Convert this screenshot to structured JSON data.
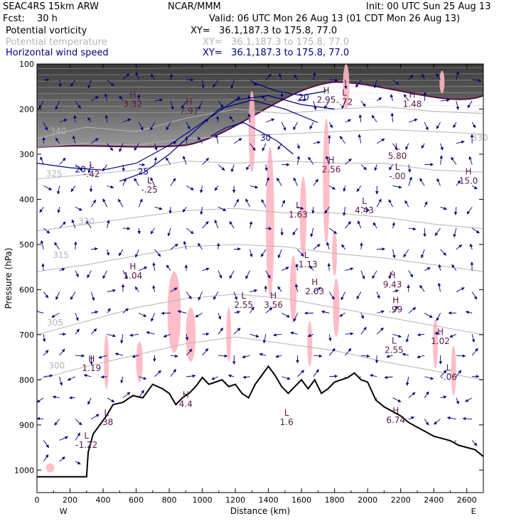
{
  "header": {
    "model": "SEAC4RS 15km ARW",
    "org": "NCAR/MMM",
    "init": "Init: 00 UTC Sun 25 Aug 13",
    "fcst_label": "Fcst:",
    "fcst_value": "30 h",
    "valid": "Valid: 06 UTC Mon 26 Aug 13 (01 CDT Mon 26 Aug 13)",
    "fields": [
      {
        "name": "Potential vorticity",
        "xy": "XY=   36.1,187.3 to 175.8, 77.0",
        "color": "#000000"
      },
      {
        "name": "Potential temperature",
        "xy": "XY=   36.1,187.3 to 175.8, 77.0",
        "color": "#b4b4b4"
      },
      {
        "name": "Horizontal wind speed",
        "xy": "XY=   36.1,187.3 to 175.8, 77.0",
        "color": "#000080"
      }
    ]
  },
  "chart_data": {
    "type": "cross-section",
    "xlabel": "Distance (km)",
    "ylabel": "Pressure (hPa)",
    "xlim": [
      0,
      2700
    ],
    "ylim": [
      1050,
      100
    ],
    "x_ticks": [
      0,
      200,
      400,
      600,
      800,
      1000,
      1200,
      1400,
      1600,
      1800,
      2000,
      2200,
      2400,
      2600
    ],
    "y_ticks": [
      100,
      200,
      300,
      400,
      500,
      600,
      700,
      800,
      900,
      1000
    ],
    "x_end_labels": [
      "W",
      "E"
    ],
    "terrain": [
      [
        0,
        1015
      ],
      [
        100,
        1015
      ],
      [
        200,
        1015
      ],
      [
        300,
        1015
      ],
      [
        310,
        960
      ],
      [
        340,
        920
      ],
      [
        380,
        900
      ],
      [
        420,
        880
      ],
      [
        460,
        855
      ],
      [
        520,
        850
      ],
      [
        580,
        835
      ],
      [
        640,
        840
      ],
      [
        700,
        810
      ],
      [
        760,
        820
      ],
      [
        800,
        830
      ],
      [
        840,
        855
      ],
      [
        880,
        840
      ],
      [
        920,
        830
      ],
      [
        960,
        815
      ],
      [
        1000,
        795
      ],
      [
        1040,
        810
      ],
      [
        1080,
        805
      ],
      [
        1120,
        800
      ],
      [
        1160,
        815
      ],
      [
        1200,
        810
      ],
      [
        1240,
        830
      ],
      [
        1280,
        840
      ],
      [
        1320,
        810
      ],
      [
        1360,
        790
      ],
      [
        1400,
        770
      ],
      [
        1440,
        790
      ],
      [
        1480,
        815
      ],
      [
        1520,
        830
      ],
      [
        1560,
        815
      ],
      [
        1600,
        800
      ],
      [
        1640,
        820
      ],
      [
        1680,
        800
      ],
      [
        1720,
        830
      ],
      [
        1760,
        820
      ],
      [
        1800,
        805
      ],
      [
        1840,
        800
      ],
      [
        1880,
        795
      ],
      [
        1920,
        785
      ],
      [
        1960,
        800
      ],
      [
        2000,
        805
      ],
      [
        2050,
        845
      ],
      [
        2100,
        860
      ],
      [
        2150,
        870
      ],
      [
        2200,
        880
      ],
      [
        2250,
        895
      ],
      [
        2300,
        905
      ],
      [
        2350,
        915
      ],
      [
        2400,
        925
      ],
      [
        2450,
        930
      ],
      [
        2500,
        935
      ],
      [
        2550,
        945
      ],
      [
        2600,
        950
      ],
      [
        2650,
        955
      ],
      [
        2700,
        970
      ]
    ],
    "theta_contours": [
      {
        "label": "340",
        "label_at": [
          80,
          255
        ],
        "points": [
          [
            0,
            265
          ],
          [
            300,
            240
          ],
          [
            600,
            250
          ],
          [
            900,
            220
          ],
          [
            1200,
            200
          ],
          [
            1500,
            210
          ],
          [
            1800,
            200
          ],
          [
            2100,
            195
          ],
          [
            2400,
            205
          ],
          [
            2700,
            210
          ]
        ]
      },
      {
        "label": "330",
        "label_at": [
          2630,
          270
        ],
        "points": [
          [
            0,
            285
          ],
          [
            300,
            275
          ],
          [
            600,
            280
          ],
          [
            900,
            265
          ],
          [
            1200,
            260
          ],
          [
            1500,
            255
          ],
          [
            1800,
            250
          ],
          [
            2100,
            245
          ],
          [
            2400,
            250
          ],
          [
            2700,
            255
          ]
        ]
      },
      {
        "label": "325",
        "label_at": [
          55,
          350
        ],
        "points": [
          [
            0,
            355
          ],
          [
            300,
            345
          ],
          [
            600,
            335
          ],
          [
            900,
            315
          ],
          [
            1200,
            320
          ],
          [
            1500,
            315
          ],
          [
            1800,
            320
          ],
          [
            2100,
            320
          ],
          [
            2400,
            335
          ],
          [
            2700,
            340
          ]
        ]
      },
      {
        "label": "320",
        "label_at": [
          250,
          455
        ],
        "points": [
          [
            0,
            470
          ],
          [
            300,
            455
          ],
          [
            600,
            440
          ],
          [
            900,
            425
          ],
          [
            1200,
            420
          ],
          [
            1500,
            430
          ],
          [
            1800,
            430
          ],
          [
            2100,
            440
          ],
          [
            2400,
            455
          ],
          [
            2700,
            465
          ]
        ]
      },
      {
        "label": "315",
        "label_at": [
          95,
          530
        ],
        "points": [
          [
            0,
            560
          ],
          [
            300,
            545
          ],
          [
            600,
            525
          ],
          [
            900,
            505
          ],
          [
            1200,
            500
          ],
          [
            1500,
            505
          ],
          [
            1800,
            520
          ],
          [
            2100,
            530
          ],
          [
            2400,
            545
          ],
          [
            2700,
            560
          ]
        ]
      },
      {
        "label": "305",
        "label_at": [
          60,
          680
        ],
        "points": [
          [
            0,
            700
          ],
          [
            300,
            670
          ],
          [
            600,
            640
          ],
          [
            900,
            620
          ],
          [
            1200,
            610
          ],
          [
            1500,
            620
          ],
          [
            1800,
            640
          ],
          [
            2100,
            660
          ],
          [
            2400,
            680
          ],
          [
            2700,
            700
          ]
        ]
      },
      {
        "label": "300",
        "label_at": [
          70,
          775
        ],
        "points": [
          [
            0,
            800
          ],
          [
            300,
            770
          ],
          [
            600,
            745
          ],
          [
            900,
            720
          ],
          [
            1200,
            705
          ],
          [
            1500,
            720
          ],
          [
            1800,
            735
          ],
          [
            2100,
            760
          ],
          [
            2400,
            780
          ],
          [
            2700,
            800
          ]
        ]
      }
    ],
    "wind_contours": [
      {
        "label": "20",
        "label_at": [
          230,
          340
        ],
        "points": [
          [
            0,
            320
          ],
          [
            200,
            330
          ],
          [
            400,
            335
          ],
          [
            600,
            320
          ],
          [
            800,
            280
          ],
          [
            1000,
            230
          ],
          [
            1200,
            180
          ],
          [
            1400,
            170
          ],
          [
            1600,
            190
          ],
          [
            1800,
            200
          ]
        ]
      },
      {
        "label": "25",
        "label_at": [
          610,
          345
        ],
        "points": [
          [
            500,
            360
          ],
          [
            650,
            340
          ],
          [
            800,
            300
          ],
          [
            950,
            250
          ],
          [
            1100,
            200
          ],
          [
            1300,
            180
          ],
          [
            1500,
            200
          ],
          [
            1700,
            230
          ]
        ]
      },
      {
        "label": "30",
        "label_at": [
          1350,
          270
        ],
        "points": [
          [
            1050,
            260
          ],
          [
            1150,
            240
          ],
          [
            1250,
            230
          ],
          [
            1350,
            250
          ],
          [
            1450,
            270
          ],
          [
            1550,
            300
          ]
        ]
      },
      {
        "label": "20",
        "label_at": [
          1580,
          180
        ],
        "points": [
          [
            1300,
            140
          ],
          [
            1450,
            160
          ],
          [
            1600,
            170
          ],
          [
            1750,
            160
          ]
        ]
      }
    ],
    "pv_labels": [
      {
        "kind": "H",
        "value": "3.32",
        "x": 580,
        "p": 175
      },
      {
        "kind": "H",
        "value": "7.97",
        "x": 920,
        "p": 190
      },
      {
        "kind": "H",
        "value": "2.95",
        "x": 1750,
        "p": 165
      },
      {
        "kind": "L",
        "value": "-.72",
        "x": 1860,
        "p": 170
      },
      {
        "kind": "H",
        "value": "1.48",
        "x": 2270,
        "p": 175
      },
      {
        "kind": "L",
        "value": "5.80",
        "x": 2180,
        "p": 290
      },
      {
        "kind": "H",
        "value": "2.56",
        "x": 1780,
        "p": 320
      },
      {
        "kind": "L",
        "value": "-.42",
        "x": 330,
        "p": 330
      },
      {
        "kind": "L",
        "value": "-.25",
        "x": 680,
        "p": 365
      },
      {
        "kind": "L",
        "value": "-.00",
        "x": 2180,
        "p": 335
      },
      {
        "kind": "H",
        "value": "15.0",
        "x": 2610,
        "p": 345
      },
      {
        "kind": "L",
        "value": "1.63",
        "x": 1580,
        "p": 420
      },
      {
        "kind": "L",
        "value": "4.43",
        "x": 1980,
        "p": 410
      },
      {
        "kind": "H",
        "value": "1.04",
        "x": 580,
        "p": 555
      },
      {
        "kind": "L",
        "value": "-1.13",
        "x": 1630,
        "p": 530
      },
      {
        "kind": "H",
        "value": "9.43",
        "x": 2150,
        "p": 575
      },
      {
        "kind": "H",
        "value": ".99",
        "x": 2170,
        "p": 630
      },
      {
        "kind": "L",
        "value": "2.55",
        "x": 1250,
        "p": 620
      },
      {
        "kind": "H",
        "value": "3.56",
        "x": 1430,
        "p": 620
      },
      {
        "kind": "H",
        "value": "2.03",
        "x": 1680,
        "p": 590
      },
      {
        "kind": "L",
        "value": "2.55",
        "x": 2160,
        "p": 720
      },
      {
        "kind": "H",
        "value": "1.02",
        "x": 2440,
        "p": 700
      },
      {
        "kind": "H",
        "value": "1.19",
        "x": 330,
        "p": 760
      },
      {
        "kind": "L",
        "value": "-.06",
        "x": 2490,
        "p": 780
      },
      {
        "kind": "L",
        "value": "-1.22",
        "x": 300,
        "p": 930
      },
      {
        "kind": "L",
        "value": ".38",
        "x": 420,
        "p": 880
      },
      {
        "kind": "H",
        "value": "4.4",
        "x": 900,
        "p": 840
      },
      {
        "kind": "L",
        "value": "1.6",
        "x": 1510,
        "p": 880
      },
      {
        "kind": "H",
        "value": "6.74",
        "x": 2170,
        "p": 875
      }
    ],
    "pv_shading": [
      {
        "x": 830,
        "p": 650,
        "w": 80,
        "h": 180
      },
      {
        "x": 930,
        "p": 700,
        "w": 60,
        "h": 120
      },
      {
        "x": 620,
        "p": 760,
        "w": 40,
        "h": 90
      },
      {
        "x": 420,
        "p": 760,
        "w": 30,
        "h": 120
      },
      {
        "x": 1160,
        "p": 700,
        "w": 30,
        "h": 120
      },
      {
        "x": 1300,
        "p": 250,
        "w": 40,
        "h": 180
      },
      {
        "x": 1410,
        "p": 450,
        "w": 50,
        "h": 330
      },
      {
        "x": 1550,
        "p": 600,
        "w": 40,
        "h": 150
      },
      {
        "x": 1610,
        "p": 440,
        "w": 40,
        "h": 180
      },
      {
        "x": 1750,
        "p": 360,
        "w": 40,
        "h": 280
      },
      {
        "x": 1810,
        "p": 640,
        "w": 40,
        "h": 130
      },
      {
        "x": 1650,
        "p": 720,
        "w": 30,
        "h": 100
      },
      {
        "x": 1870,
        "p": 150,
        "w": 40,
        "h": 100
      },
      {
        "x": 1800,
        "p": 520,
        "w": 30,
        "h": 100
      },
      {
        "x": 2520,
        "p": 780,
        "w": 30,
        "h": 110
      },
      {
        "x": 2410,
        "p": 720,
        "w": 30,
        "h": 110
      },
      {
        "x": 2450,
        "p": 140,
        "w": 30,
        "h": 50
      },
      {
        "x": 80,
        "p": 995,
        "w": 50,
        "h": 20
      }
    ],
    "wind_vectors_note": "wind direction arrows across domain",
    "grid": false
  },
  "colors": {
    "theta": "#b4b4b4",
    "wind": "#000080",
    "pv": "#5a1846",
    "pv_fill": "#ffb6c1",
    "terrain": "#000000",
    "strat_shade": "#4a4a4a"
  }
}
